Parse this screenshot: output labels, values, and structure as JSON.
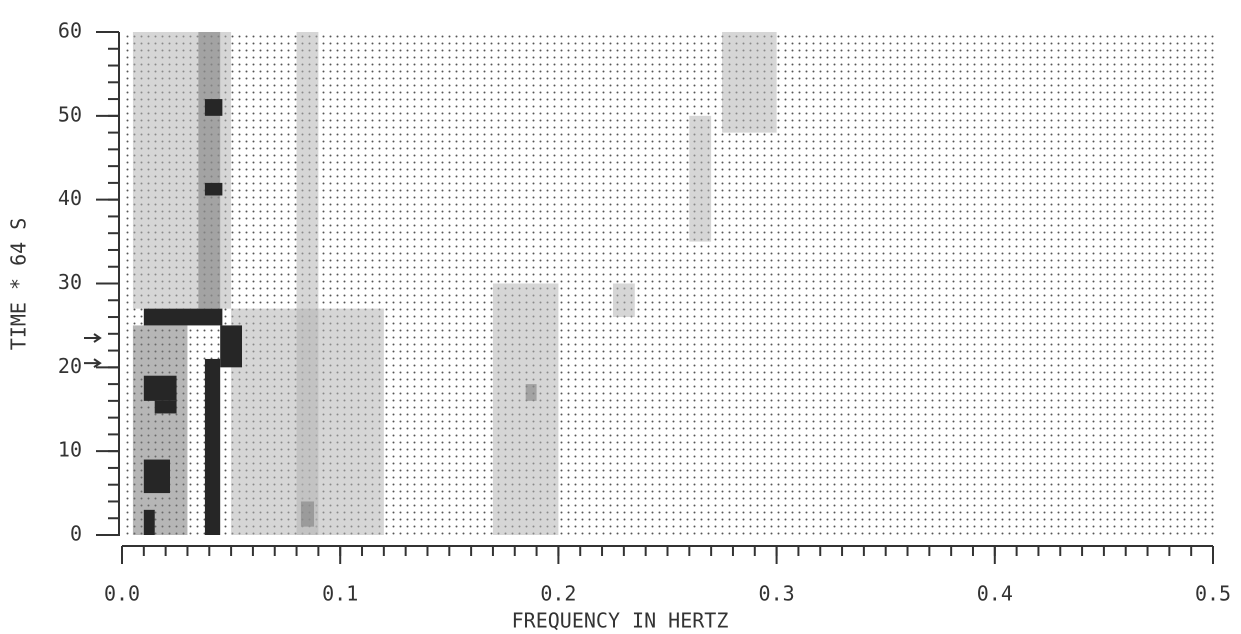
{
  "chart_data": {
    "type": "spectrogram",
    "xlabel": "FREQUENCY IN HERTZ",
    "ylabel": "TIME * 64 S",
    "xlim": [
      0,
      0.5
    ],
    "ylim": [
      0,
      60
    ],
    "xticks": [
      {
        "value": 0,
        "label": "0.0"
      },
      0.1,
      0.2,
      0.3,
      0.4,
      0.5
    ],
    "yticks": [
      0,
      10,
      20,
      30,
      40,
      50,
      60
    ],
    "xminor": 0.01,
    "yminor": 2,
    "arrow_marks": [
      23.5,
      20.5
    ],
    "colors": [
      "#b4b4b4",
      "#7a7a7a",
      "#262626"
    ],
    "regions": [
      {
        "x": [
          0.005,
          0.05
        ],
        "y": [
          27,
          60
        ],
        "level": 1
      },
      {
        "x": [
          0.08,
          0.09
        ],
        "y": [
          0,
          60
        ],
        "level": 1
      },
      {
        "x": [
          0.05,
          0.12
        ],
        "y": [
          0,
          27
        ],
        "level": 1
      },
      {
        "x": [
          0.17,
          0.2
        ],
        "y": [
          0,
          30
        ],
        "level": 1
      },
      {
        "x": [
          0.26,
          0.27
        ],
        "y": [
          35,
          50
        ],
        "level": 1
      },
      {
        "x": [
          0.275,
          0.3
        ],
        "y": [
          48,
          60
        ],
        "level": 1
      },
      {
        "x": [
          0.225,
          0.235
        ],
        "y": [
          26,
          30
        ],
        "level": 1
      },
      {
        "x": [
          0.035,
          0.045
        ],
        "y": [
          27,
          60
        ],
        "level": 2
      },
      {
        "x": [
          0.005,
          0.03
        ],
        "y": [
          0,
          25
        ],
        "level": 2
      },
      {
        "x": [
          0.082,
          0.088
        ],
        "y": [
          1,
          4
        ],
        "level": 2
      },
      {
        "x": [
          0.185,
          0.19
        ],
        "y": [
          16,
          18
        ],
        "level": 2
      },
      {
        "x": [
          0.038,
          0.046
        ],
        "y": [
          50,
          52
        ],
        "level": 3
      },
      {
        "x": [
          0.038,
          0.046
        ],
        "y": [
          40.5,
          42
        ],
        "level": 3
      },
      {
        "x": [
          0.038,
          0.045
        ],
        "y": [
          0,
          21
        ],
        "level": 3
      },
      {
        "x": [
          0.01,
          0.046
        ],
        "y": [
          25,
          27
        ],
        "level": 3
      },
      {
        "x": [
          0.045,
          0.055
        ],
        "y": [
          20,
          25
        ],
        "level": 3
      },
      {
        "x": [
          0.01,
          0.025
        ],
        "y": [
          16,
          19
        ],
        "level": 3
      },
      {
        "x": [
          0.015,
          0.025
        ],
        "y": [
          14.5,
          16
        ],
        "level": 3
      },
      {
        "x": [
          0.01,
          0.022
        ],
        "y": [
          5,
          9
        ],
        "level": 3
      },
      {
        "x": [
          0.01,
          0.015
        ],
        "y": [
          0,
          3
        ],
        "level": 3
      }
    ]
  }
}
